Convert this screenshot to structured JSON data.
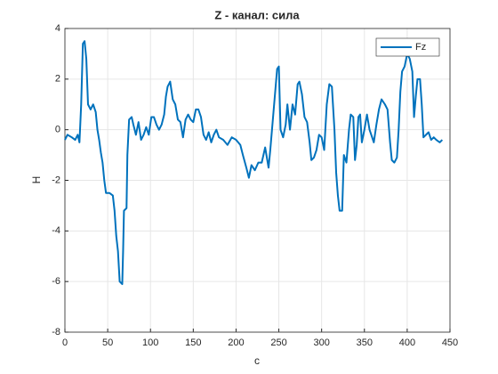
{
  "chart_data": {
    "type": "line",
    "title": "Z - канал: сила",
    "xlabel": "c",
    "ylabel": "H",
    "x": [
      0,
      3,
      8,
      12,
      15,
      17,
      19,
      21,
      23,
      25,
      27,
      30,
      33,
      36,
      38,
      40,
      42,
      44,
      46,
      48,
      52,
      56,
      58,
      60,
      62,
      64,
      67,
      68,
      69,
      72,
      73,
      75,
      78,
      80,
      83,
      86,
      89,
      92,
      95,
      98,
      101,
      104,
      107,
      110,
      113,
      116,
      118,
      120,
      123,
      126,
      129,
      132,
      135,
      138,
      141,
      144,
      147,
      150,
      153,
      156,
      159,
      162,
      165,
      168,
      171,
      174,
      177,
      180,
      185,
      190,
      195,
      200,
      205,
      208,
      212,
      215,
      218,
      222,
      226,
      230,
      234,
      238,
      240,
      243,
      245,
      248,
      250,
      252,
      255,
      258,
      260,
      263,
      266,
      269,
      272,
      274,
      277,
      280,
      283,
      286,
      288,
      291,
      294,
      297,
      300,
      303,
      306,
      309,
      312,
      315,
      317,
      319,
      321,
      324,
      326,
      329,
      332,
      334,
      337,
      339,
      341,
      343,
      345,
      347,
      350,
      353,
      356,
      358,
      361,
      364,
      367,
      370,
      374,
      377,
      380,
      382,
      385,
      388,
      390,
      392,
      394,
      397,
      400,
      403,
      406,
      408,
      410,
      412,
      415,
      417,
      419,
      422,
      425,
      428,
      431,
      434,
      438,
      441
    ],
    "series": [
      {
        "name": "Fz",
        "color": "#0072bd",
        "values": [
          -0.4,
          -0.2,
          -0.3,
          -0.4,
          -0.2,
          -0.5,
          1.0,
          3.4,
          3.5,
          2.8,
          1.0,
          0.8,
          1.0,
          0.7,
          0.0,
          -0.4,
          -0.9,
          -1.3,
          -2.0,
          -2.5,
          -2.5,
          -2.6,
          -3.2,
          -4.2,
          -4.8,
          -6.0,
          -6.1,
          -4.8,
          -3.2,
          -3.1,
          -1.0,
          0.4,
          0.5,
          0.2,
          -0.2,
          0.3,
          -0.4,
          -0.2,
          0.1,
          -0.2,
          0.5,
          0.5,
          0.2,
          0.0,
          0.2,
          0.6,
          1.3,
          1.7,
          1.9,
          1.2,
          1.0,
          0.4,
          0.3,
          -0.3,
          0.4,
          0.6,
          0.4,
          0.3,
          0.8,
          0.8,
          0.5,
          -0.2,
          -0.4,
          -0.1,
          -0.5,
          -0.2,
          0.0,
          -0.3,
          -0.4,
          -0.6,
          -0.3,
          -0.4,
          -0.6,
          -1.0,
          -1.5,
          -1.9,
          -1.4,
          -1.6,
          -1.3,
          -1.3,
          -0.7,
          -1.5,
          -0.8,
          0.4,
          1.2,
          2.4,
          2.5,
          0.0,
          -0.3,
          0.2,
          1.0,
          0.0,
          1.0,
          0.6,
          1.8,
          1.9,
          1.4,
          0.5,
          0.3,
          -0.5,
          -1.2,
          -1.1,
          -0.8,
          -0.2,
          -0.3,
          -0.8,
          1.0,
          1.8,
          1.7,
          0.0,
          -1.7,
          -2.6,
          -3.2,
          -3.2,
          -1.0,
          -1.3,
          0.0,
          0.6,
          0.5,
          -1.2,
          -0.6,
          0.5,
          0.6,
          -0.5,
          0.0,
          0.6,
          0.0,
          -0.2,
          -0.5,
          0.2,
          0.8,
          1.2,
          1.0,
          0.8,
          -0.5,
          -1.2,
          -1.3,
          -1.1,
          0.0,
          1.5,
          2.3,
          2.5,
          3.0,
          2.8,
          2.3,
          0.5,
          1.3,
          2.0,
          2.0,
          1.0,
          -0.3,
          -0.2,
          -0.1,
          -0.4,
          -0.3,
          -0.4,
          -0.5,
          -0.4
        ]
      }
    ],
    "xlim": [
      0,
      450
    ],
    "xticks": [
      0,
      50,
      100,
      150,
      200,
      250,
      300,
      350,
      400,
      450
    ],
    "ylim": [
      -8,
      4
    ],
    "yticks": [
      -8,
      -6,
      -4,
      -2,
      0,
      2,
      4
    ],
    "grid": true,
    "legend": "northeast"
  }
}
